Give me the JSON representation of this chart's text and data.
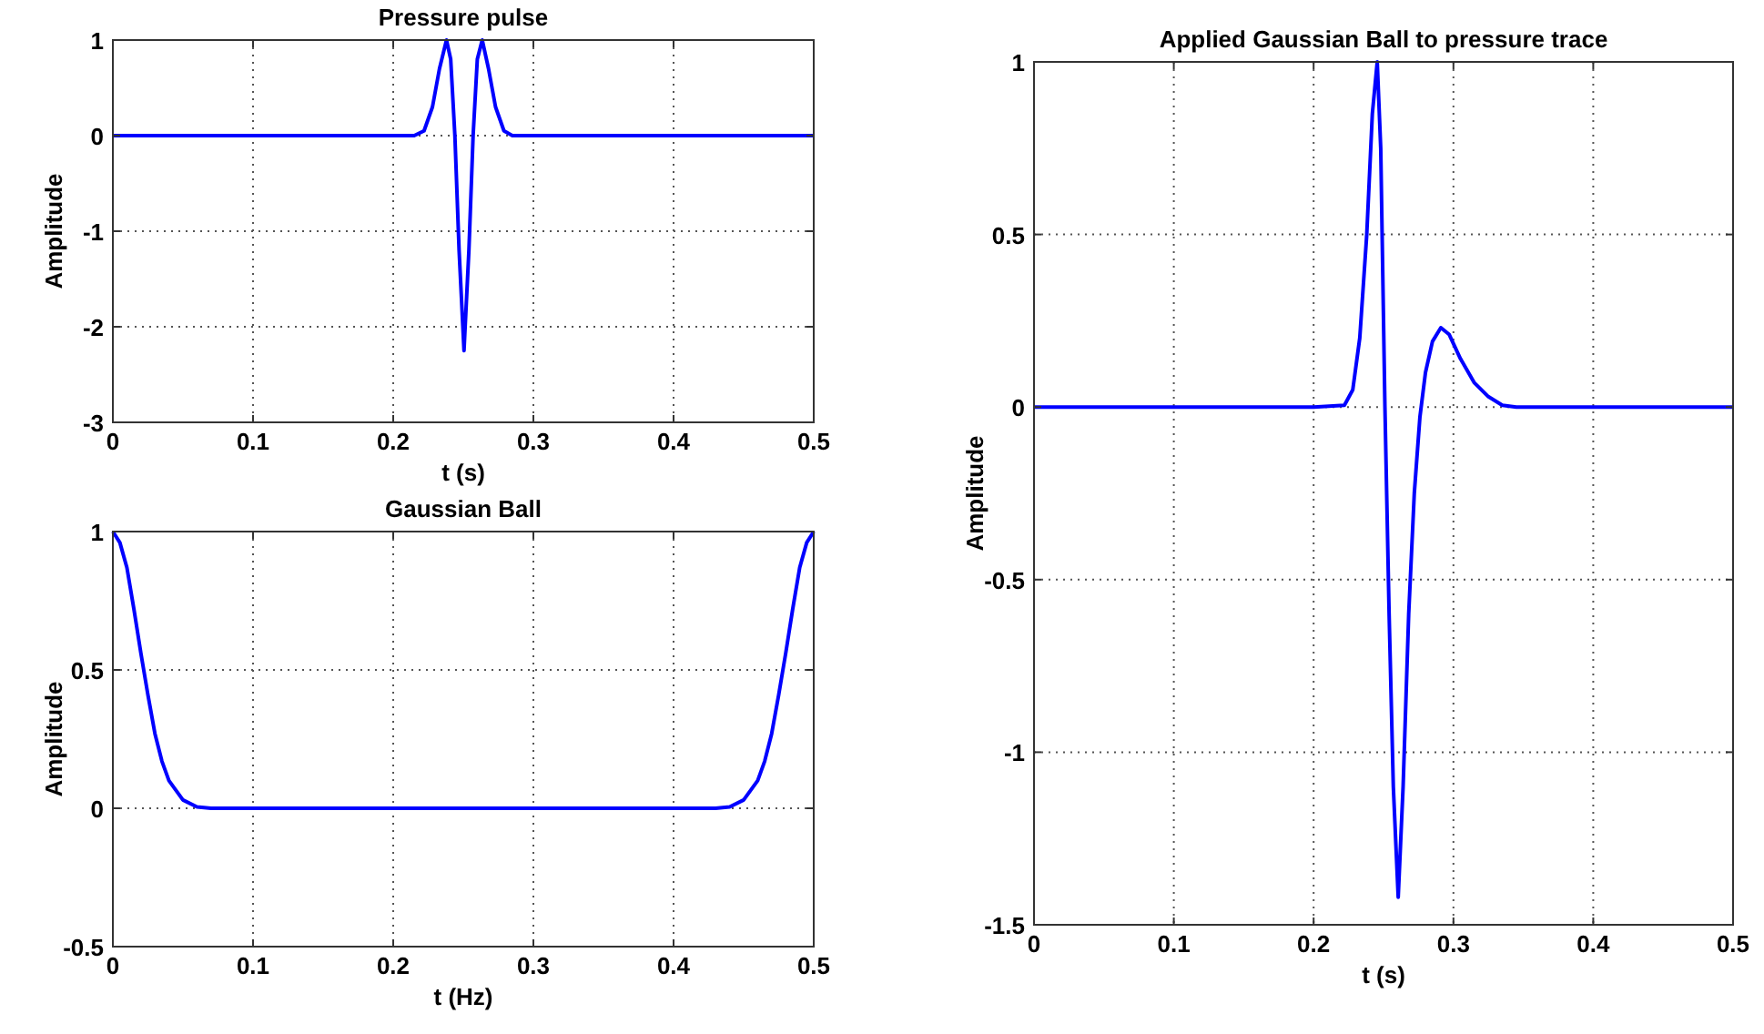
{
  "chart_data": [
    {
      "type": "line",
      "title": "Pressure pulse",
      "xlabel": "t (s)",
      "ylabel": "Amplitude",
      "xlim": [
        0,
        0.5
      ],
      "ylim": [
        -3,
        1
      ],
      "xticks": [
        0,
        0.1,
        0.2,
        0.3,
        0.4,
        0.5
      ],
      "yticks": [
        -3,
        -2,
        -1,
        0,
        1
      ],
      "grid": true,
      "x": [
        0,
        0.215,
        0.222,
        0.228,
        0.233,
        0.238,
        0.241,
        0.244,
        0.247,
        0.2505,
        0.254,
        0.257,
        0.26,
        0.2635,
        0.268,
        0.273,
        0.279,
        0.285,
        0.5
      ],
      "series": [
        {
          "color": "#0000ff",
          "values": [
            0,
            0,
            0.05,
            0.3,
            0.7,
            1,
            0.8,
            0,
            -1.2,
            -2.25,
            -1.2,
            0,
            0.8,
            1,
            0.7,
            0.3,
            0.05,
            0,
            0
          ]
        }
      ]
    },
    {
      "type": "line",
      "title": "Gaussian Ball",
      "xlabel": "t (Hz)",
      "ylabel": "Amplitude",
      "xlim": [
        0,
        0.5
      ],
      "ylim": [
        -0.5,
        1
      ],
      "xticks": [
        0,
        0.1,
        0.2,
        0.3,
        0.4,
        0.5
      ],
      "yticks": [
        -0.5,
        0,
        0.5,
        1
      ],
      "grid": true,
      "x": [
        0,
        0.005,
        0.01,
        0.015,
        0.02,
        0.025,
        0.03,
        0.035,
        0.04,
        0.05,
        0.06,
        0.07,
        0.43,
        0.44,
        0.45,
        0.46,
        0.465,
        0.47,
        0.475,
        0.48,
        0.485,
        0.49,
        0.495,
        0.5
      ],
      "series": [
        {
          "color": "#0000ff",
          "values": [
            1,
            0.96,
            0.87,
            0.72,
            0.56,
            0.41,
            0.27,
            0.17,
            0.1,
            0.03,
            0.005,
            0,
            0,
            0.005,
            0.03,
            0.1,
            0.17,
            0.27,
            0.41,
            0.56,
            0.72,
            0.87,
            0.96,
            1
          ]
        }
      ]
    },
    {
      "type": "line",
      "title": "Applied Gaussian Ball to pressure trace",
      "xlabel": "t (s)",
      "ylabel": "Amplitude",
      "xlim": [
        0,
        0.5
      ],
      "ylim": [
        -1.5,
        1
      ],
      "xticks": [
        0,
        0.1,
        0.2,
        0.3,
        0.4,
        0.5
      ],
      "yticks": [
        -1.5,
        -1,
        -0.5,
        0,
        0.5,
        1
      ],
      "grid": true,
      "x": [
        0,
        0.2,
        0.222,
        0.228,
        0.233,
        0.238,
        0.242,
        0.2455,
        0.248,
        0.251,
        0.254,
        0.257,
        0.2605,
        0.264,
        0.268,
        0.272,
        0.276,
        0.28,
        0.285,
        0.291,
        0.297,
        0.305,
        0.315,
        0.325,
        0.335,
        0.345,
        0.5
      ],
      "series": [
        {
          "color": "#0000ff",
          "values": [
            0,
            0,
            0.005,
            0.05,
            0.2,
            0.5,
            0.85,
            1,
            0.75,
            0,
            -0.6,
            -1.1,
            -1.42,
            -1.1,
            -0.6,
            -0.25,
            -0.03,
            0.1,
            0.19,
            0.23,
            0.21,
            0.14,
            0.07,
            0.03,
            0.005,
            0,
            0
          ]
        }
      ]
    }
  ]
}
